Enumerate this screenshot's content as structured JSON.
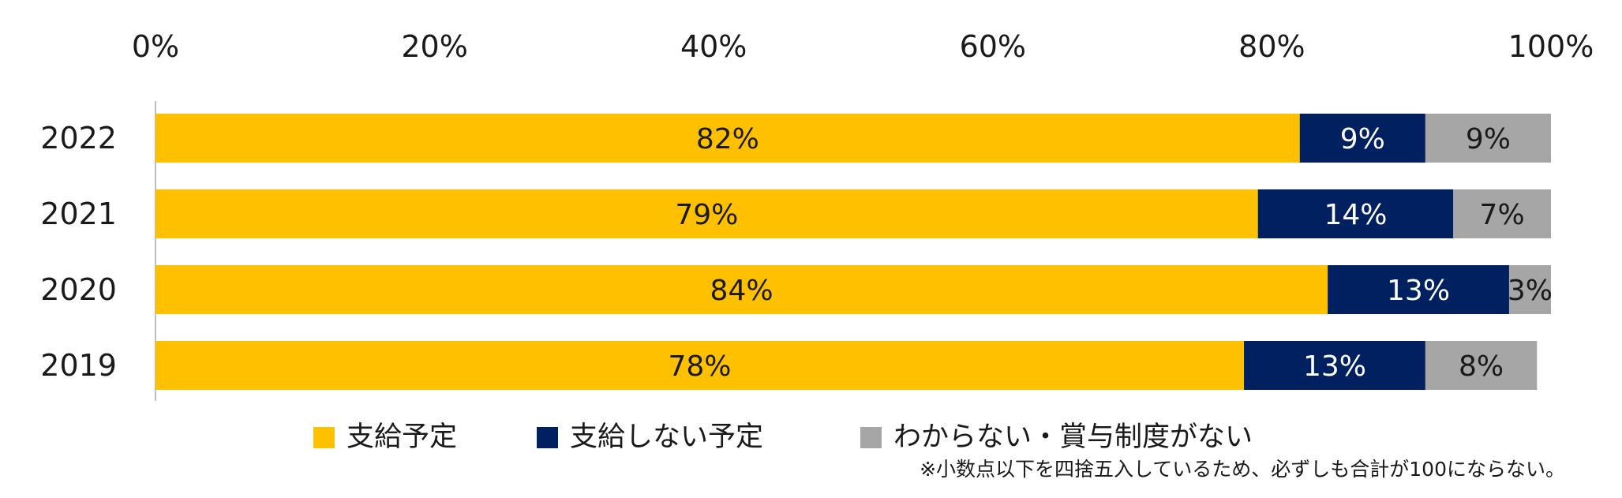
{
  "chart_data": {
    "type": "bar",
    "orientation": "horizontal",
    "stacked": true,
    "categories": [
      "2022",
      "2021",
      "2020",
      "2019"
    ],
    "series": [
      {
        "name": "支給予定",
        "values": [
          82,
          79,
          84,
          78
        ],
        "labels": [
          "82%",
          "79%",
          "84%",
          "78%"
        ],
        "color": "#FFC000",
        "label_color": "#1a1a1a"
      },
      {
        "name": "支給しない予定",
        "values": [
          9,
          14,
          13,
          13
        ],
        "labels": [
          "9%",
          "14%",
          "13%",
          "13%"
        ],
        "color": "#002060",
        "label_color": "#ffffff"
      },
      {
        "name": "わからない・賞与制度がない",
        "values": [
          9,
          7,
          3,
          8
        ],
        "labels": [
          "9%",
          "7%",
          "3%",
          "8%"
        ],
        "color": "#A6A6A6",
        "label_color": "#1a1a1a"
      }
    ],
    "x_ticks": [
      "0%",
      "20%",
      "40%",
      "60%",
      "80%",
      "100%"
    ],
    "xlim": [
      0,
      100
    ],
    "x_axis_position": "top",
    "grid": false,
    "legend_position": "bottom",
    "note": "※小数点以下を四捨五入しているため、必ずしも合計が100にならない。"
  }
}
